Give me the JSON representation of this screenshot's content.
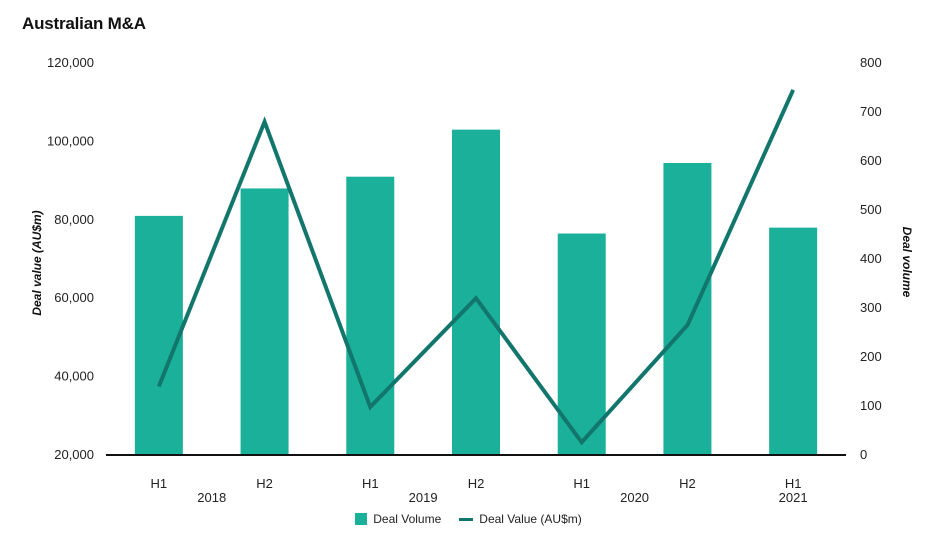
{
  "chart_data": {
    "type": "bar",
    "title": "Australian M&A",
    "categories": [
      "H1",
      "H2",
      "H1",
      "H2",
      "H1",
      "H2",
      "H1"
    ],
    "groups": [
      {
        "label": "2018",
        "from": 0,
        "to": 1
      },
      {
        "label": "2019",
        "from": 2,
        "to": 3
      },
      {
        "label": "2020",
        "from": 4,
        "to": 5
      },
      {
        "label": "2021",
        "from": 6,
        "to": 6
      }
    ],
    "series": [
      {
        "name": "Deal Volume",
        "type": "bar",
        "axis": "left",
        "values": [
          81000,
          88000,
          91000,
          103000,
          76500,
          94500,
          78000
        ]
      },
      {
        "name": "Deal Value (AU$m)",
        "type": "line",
        "axis": "right",
        "values": [
          140,
          680,
          98,
          320,
          26,
          265,
          745
        ]
      }
    ],
    "ylabel": "Deal value (AU$m)",
    "y2label": "Deal volume",
    "ylim": [
      20000,
      120000
    ],
    "y2lim": [
      0,
      800
    ],
    "yticks": [
      "120,000",
      "100,000",
      "80,000",
      "60,000",
      "40,000",
      "20,000"
    ],
    "y2ticks": [
      "800",
      "700",
      "600",
      "500",
      "400",
      "300",
      "200",
      "100",
      "0"
    ],
    "grid": false,
    "legend_position": "bottom-center",
    "colors": {
      "bar": "#1bb09a",
      "line": "#12766d",
      "baseline": "#111111"
    }
  }
}
